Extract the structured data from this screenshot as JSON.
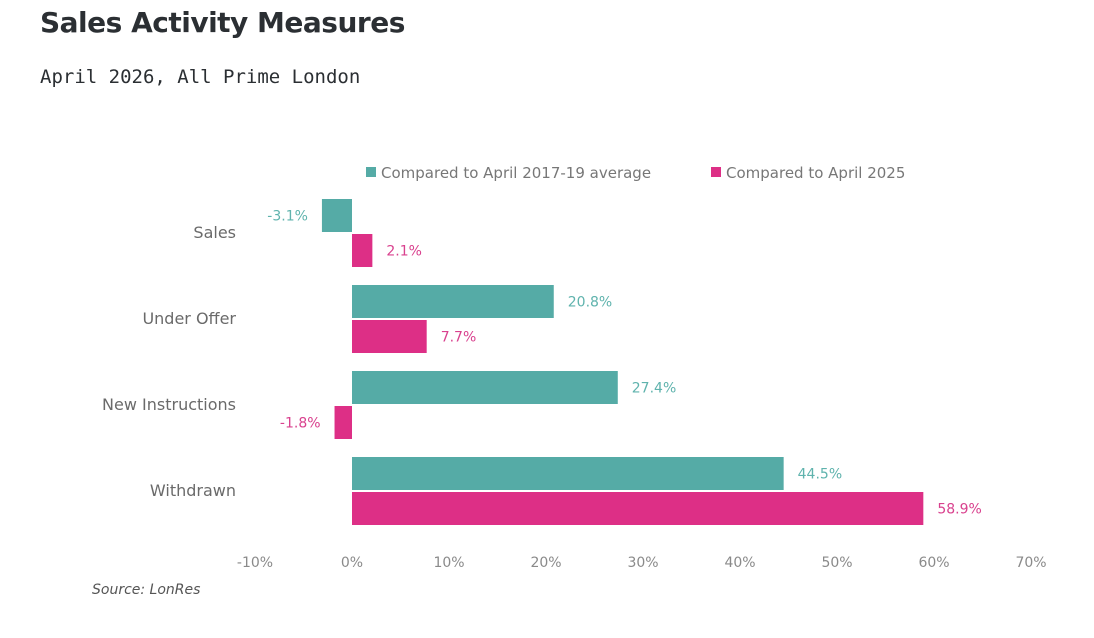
{
  "page": {
    "title": "Sales Activity Measures",
    "subtitle": "April 2026, All Prime London"
  },
  "colors": {
    "teal": "#55aba6",
    "magenta": "#dd2f86",
    "teal_label": "#5fb3ad",
    "magenta_label": "#d9418e"
  },
  "chart_data": {
    "type": "bar",
    "orientation": "horizontal",
    "title": "",
    "categories": [
      "Sales",
      "Under Offer",
      "New Instructions",
      "Withdrawn"
    ],
    "series": [
      {
        "name": "Compared to April 2017-19 average",
        "color": "#55aba6",
        "values": [
          -3.1,
          20.8,
          27.4,
          44.5
        ],
        "labels": [
          "-3.1%",
          "20.8%",
          "27.4%",
          "44.5%"
        ]
      },
      {
        "name": "Compared to April 2025",
        "color": "#dd2f86",
        "values": [
          2.1,
          7.7,
          -1.8,
          58.9
        ],
        "labels": [
          "2.1%",
          "7.7%",
          "-1.8%",
          "58.9%"
        ]
      }
    ],
    "xlim": [
      -10,
      70
    ],
    "xticks": [
      -10,
      0,
      10,
      20,
      30,
      40,
      50,
      60,
      70
    ],
    "xtick_labels": [
      "-10%",
      "0%",
      "10%",
      "20%",
      "30%",
      "40%",
      "50%",
      "60%",
      "70%"
    ],
    "xlabel": "",
    "ylabel": "",
    "grid": false,
    "legend_position": "top",
    "source": "Source: LonRes"
  }
}
